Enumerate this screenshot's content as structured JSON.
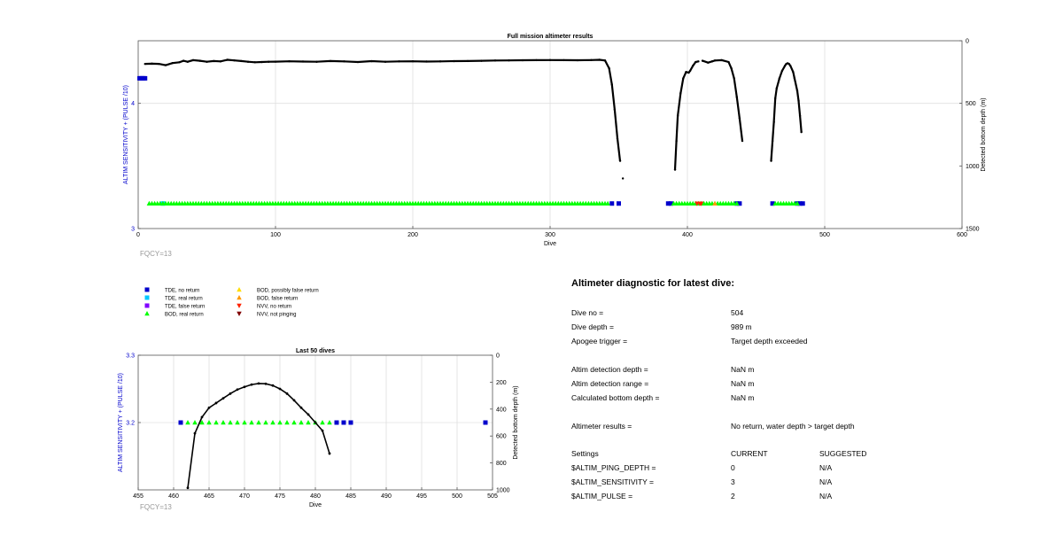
{
  "colors": {
    "tde_no": "#0000cc",
    "tde_real": "#00c8ff",
    "tde_false": "#8000ff",
    "bod_real": "#00ff00",
    "bod_possibly_false": "#ffdd00",
    "bod_false": "#ff9900",
    "nvv_no": "#ff2200",
    "nvv_not": "#800000",
    "axis_blue": "#0000cc",
    "fqcy": "#999999",
    "grid": "#e0e0e0"
  },
  "legend": [
    {
      "label": "TDE, no return",
      "marker": "square",
      "color": "#0000cc"
    },
    {
      "label": "TDE, real return",
      "marker": "square",
      "color": "#00c8ff"
    },
    {
      "label": "TDE, false return",
      "marker": "square",
      "color": "#8000ff"
    },
    {
      "label": "BOD, real return",
      "marker": "triangle-up",
      "color": "#00ff00"
    },
    {
      "label": "BOD, possibly false return",
      "marker": "triangle-up",
      "color": "#ffdd00"
    },
    {
      "label": "BOD, false return",
      "marker": "triangle-up",
      "color": "#ff9900"
    },
    {
      "label": "NVV, no return",
      "marker": "triangle-down",
      "color": "#ff2200"
    },
    {
      "label": "NVV, not pinging",
      "marker": "triangle-down",
      "color": "#800000"
    }
  ],
  "chart_data": [
    {
      "type": "scatter",
      "title": "Full mission altimeter results",
      "xlabel": "Dive",
      "ylabel_left": "ALTIM SENSITIVITY + (PULSE /10)",
      "ylabel_right": "Detected bottom depth (m)",
      "xlim": [
        0,
        600
      ],
      "ylim_left": [
        3,
        4.5
      ],
      "ylim_right": [
        0,
        1500
      ],
      "y_right_reversed": true,
      "xticks": [
        0,
        100,
        200,
        300,
        400,
        500,
        600
      ],
      "yticks_left": [
        3,
        4
      ],
      "yticks_right": [
        0,
        500,
        1000,
        1500
      ],
      "grid": true,
      "footnote": "FQCY=13",
      "depth_series": {
        "name": "Detected bottom depth",
        "segments": [
          [
            [
              5,
              185
            ],
            [
              10,
              183
            ],
            [
              15,
              185
            ],
            [
              20,
              195
            ],
            [
              25,
              178
            ],
            [
              30,
              172
            ],
            [
              33,
              160
            ],
            [
              36,
              168
            ],
            [
              40,
              155
            ],
            [
              45,
              160
            ],
            [
              50,
              168
            ],
            [
              55,
              162
            ],
            [
              60,
              165
            ],
            [
              65,
              152
            ],
            [
              70,
              157
            ],
            [
              75,
              162
            ],
            [
              80,
              168
            ],
            [
              85,
              172
            ],
            [
              90,
              170
            ],
            [
              95,
              168
            ],
            [
              100,
              167
            ],
            [
              110,
              164
            ],
            [
              120,
              166
            ],
            [
              130,
              168
            ],
            [
              140,
              162
            ],
            [
              150,
              165
            ],
            [
              160,
              170
            ],
            [
              170,
              163
            ],
            [
              180,
              168
            ],
            [
              190,
              165
            ],
            [
              200,
              164
            ],
            [
              210,
              166
            ],
            [
              220,
              165
            ],
            [
              230,
              163
            ],
            [
              240,
              162
            ],
            [
              250,
              160
            ],
            [
              260,
              158
            ],
            [
              270,
              157
            ],
            [
              280,
              156
            ],
            [
              290,
              155
            ],
            [
              300,
              154
            ],
            [
              310,
              155
            ],
            [
              320,
              156
            ],
            [
              330,
              154
            ],
            [
              336,
              152
            ],
            [
              340,
              158
            ],
            [
              343,
              220
            ],
            [
              345,
              350
            ],
            [
              347,
              550
            ],
            [
              349,
              780
            ],
            [
              351,
              960
            ]
          ],
          [
            [
              353,
              1100
            ]
          ],
          [
            [
              391,
              1030
            ],
            [
              392,
              800
            ],
            [
              393,
              600
            ],
            [
              395,
              420
            ],
            [
              397,
              300
            ],
            [
              399,
              250
            ],
            [
              401,
              255
            ],
            [
              402,
              240
            ],
            [
              404,
              200
            ],
            [
              406,
              170
            ],
            [
              408,
              165
            ]
          ],
          [
            [
              411,
              160
            ],
            [
              415,
              175
            ],
            [
              418,
              165
            ],
            [
              420,
              158
            ],
            [
              425,
              155
            ],
            [
              430,
              170
            ],
            [
              432,
              220
            ],
            [
              434,
              300
            ],
            [
              436,
              450
            ],
            [
              438,
              620
            ],
            [
              440,
              800
            ]
          ],
          [
            [
              461,
              960
            ],
            [
              462,
              800
            ],
            [
              463,
              650
            ],
            [
              464,
              460
            ],
            [
              465,
              380
            ],
            [
              467,
              300
            ],
            [
              469,
              240
            ],
            [
              471,
              200
            ],
            [
              472,
              185
            ],
            [
              473,
              180
            ],
            [
              474,
              185
            ],
            [
              475,
              200
            ],
            [
              477,
              250
            ],
            [
              478,
              300
            ],
            [
              480,
              400
            ],
            [
              481,
              480
            ],
            [
              482,
              600
            ],
            [
              483,
              730
            ]
          ]
        ]
      },
      "altim_series": [
        {
          "name": "TDE, no return",
          "color": "#0000cc",
          "marker": "square",
          "points": [
            [
              1,
              4.2
            ],
            [
              2,
              4.2
            ],
            [
              3,
              4.2
            ],
            [
              4,
              4.2
            ],
            [
              5,
              4.2
            ],
            [
              345,
              3.2
            ],
            [
              350,
              3.2
            ],
            [
              386,
              3.2
            ],
            [
              388,
              3.2
            ],
            [
              436,
              3.2
            ],
            [
              438,
              3.2
            ],
            [
              462,
              3.2
            ],
            [
              480,
              3.2
            ],
            [
              482,
              3.2
            ],
            [
              484,
              3.2
            ]
          ]
        },
        {
          "name": "TDE, real return",
          "color": "#00c8ff",
          "marker": "square",
          "points": [
            [
              18,
              3.2
            ]
          ]
        },
        {
          "name": "BOD, real return",
          "range": [
            8,
            343
          ],
          "y": 3.2,
          "color": "#00ff00",
          "marker": "triangle-up"
        },
        {
          "name": "BOD, real return",
          "range": [
            390,
            436
          ],
          "y": 3.2,
          "color": "#00ff00",
          "marker": "triangle-up"
        },
        {
          "name": "BOD, real return",
          "range": [
            464,
            480
          ],
          "y": 3.2,
          "color": "#00ff00",
          "marker": "triangle-up"
        },
        {
          "name": "BOD, false return",
          "color": "#ff9900",
          "marker": "triangle-up",
          "points": [
            [
              420,
              3.2
            ]
          ]
        },
        {
          "name": "NVV, no return",
          "color": "#ff2200",
          "marker": "triangle-down",
          "points": [
            [
              407,
              3.2
            ],
            [
              409,
              3.2
            ],
            [
              410,
              3.2
            ]
          ]
        }
      ]
    },
    {
      "type": "scatter",
      "title": "Last 50 dives",
      "xlabel": "Dive",
      "ylabel_left": "ALTIM SENSITIVITY + (PULSE /10)",
      "ylabel_right": "Detected bottom depth (m)",
      "xlim": [
        455,
        505
      ],
      "ylim_left": [
        3.1,
        3.3
      ],
      "ylim_right": [
        0,
        1000
      ],
      "y_right_reversed": true,
      "xticks": [
        455,
        460,
        465,
        470,
        475,
        480,
        485,
        490,
        495,
        500,
        505
      ],
      "yticks_left": [
        3.2,
        3.3
      ],
      "yticks_right": [
        0,
        200,
        400,
        600,
        800,
        1000
      ],
      "grid": true,
      "footnote": "FQCY=13",
      "depth_series": {
        "name": "Detected bottom depth",
        "segments": [
          [
            [
              462,
              985
            ],
            [
              463,
              580
            ],
            [
              464,
              460
            ],
            [
              465,
              390
            ],
            [
              466,
              355
            ],
            [
              467,
              320
            ],
            [
              468,
              285
            ],
            [
              469,
              255
            ],
            [
              470,
              235
            ],
            [
              471,
              218
            ],
            [
              472,
              210
            ],
            [
              473,
              212
            ],
            [
              474,
              225
            ],
            [
              475,
              250
            ],
            [
              476,
              285
            ],
            [
              477,
              335
            ],
            [
              478,
              390
            ],
            [
              479,
              440
            ],
            [
              480,
              500
            ],
            [
              481,
              560
            ],
            [
              482,
              730
            ]
          ]
        ]
      },
      "altim_series": [
        {
          "name": "TDE, no return",
          "color": "#0000cc",
          "marker": "square",
          "points": [
            [
              461,
              3.2
            ],
            [
              483,
              3.2
            ],
            [
              484,
              3.2
            ],
            [
              485,
              3.2
            ],
            [
              504,
              3.2
            ]
          ]
        },
        {
          "name": "BOD, real return",
          "color": "#00ff00",
          "marker": "triangle-up",
          "points": [
            [
              462,
              3.2
            ],
            [
              463,
              3.2
            ],
            [
              464,
              3.2
            ],
            [
              465,
              3.2
            ],
            [
              466,
              3.2
            ],
            [
              467,
              3.2
            ],
            [
              468,
              3.2
            ],
            [
              469,
              3.2
            ],
            [
              470,
              3.2
            ],
            [
              471,
              3.2
            ],
            [
              472,
              3.2
            ],
            [
              473,
              3.2
            ],
            [
              474,
              3.2
            ],
            [
              475,
              3.2
            ],
            [
              476,
              3.2
            ],
            [
              477,
              3.2
            ],
            [
              478,
              3.2
            ],
            [
              479,
              3.2
            ],
            [
              480,
              3.2
            ],
            [
              481,
              3.2
            ],
            [
              482,
              3.2
            ]
          ]
        }
      ]
    }
  ],
  "diagnostic": {
    "title": "Altimeter diagnostic for latest dive:",
    "rows": [
      {
        "label": "Dive no =",
        "value": "504"
      },
      {
        "label": "Dive depth =",
        "value": "989 m"
      },
      {
        "label": "Apogee trigger =",
        "value": "Target depth exceeded"
      },
      {
        "label": "Altim detection depth =",
        "value": "NaN m"
      },
      {
        "label": "Altim detection range =",
        "value": "NaN m"
      },
      {
        "label": "Calculated bottom depth =",
        "value": "NaN m"
      },
      {
        "label": "Altimeter results =",
        "value": "No return, water depth > target depth"
      }
    ],
    "settings_header": {
      "label": "Settings",
      "current": "CURRENT",
      "suggested": "SUGGESTED"
    },
    "settings": [
      {
        "label": "$ALTIM_PING_DEPTH =",
        "current": "0",
        "suggested": "N/A"
      },
      {
        "label": "$ALTIM_SENSITIVITY =",
        "current": "3",
        "suggested": "N/A"
      },
      {
        "label": "$ALTIM_PULSE =",
        "current": "2",
        "suggested": "N/A"
      }
    ]
  }
}
